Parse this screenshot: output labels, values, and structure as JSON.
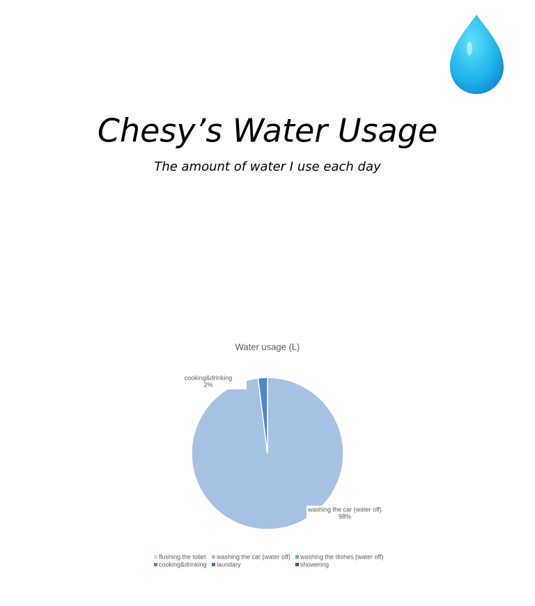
{
  "header": {
    "title": "Chesy’s Water Usage",
    "subtitle": "The amount of water I use each day"
  },
  "chart_data": {
    "type": "pie",
    "title": "Water usage (L)",
    "categories": [
      "flushing the toliet",
      "washing the car (water off)",
      "washing the dishes (water off)",
      "cooking&drinking",
      "laundary",
      "showering"
    ],
    "values": [
      0,
      98,
      0,
      2,
      0,
      0
    ],
    "value_labels": [
      null,
      "98%",
      null,
      "2%",
      null,
      null
    ],
    "colors": [
      "#c9d5ea",
      "#a7c1e4",
      "#6fa2d8",
      "#4d89c9",
      "#3b78bc",
      "#2c5d94"
    ]
  }
}
